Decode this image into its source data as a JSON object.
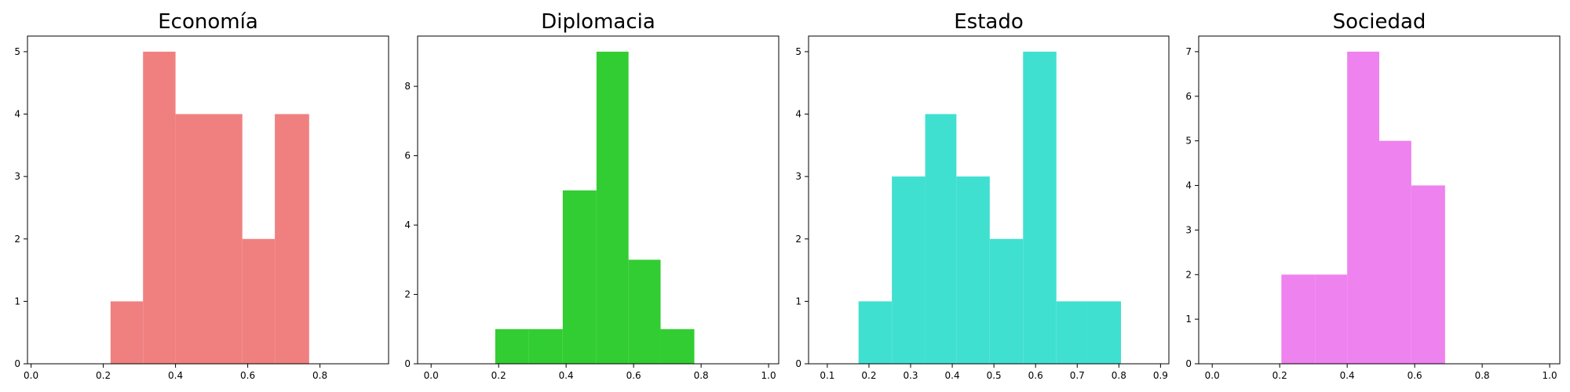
{
  "chart_data": [
    {
      "type": "bar",
      "title": "Economía",
      "color": "#f08080",
      "xlim": [
        -0.01,
        0.99
      ],
      "ylim": [
        0,
        5.25
      ],
      "xticks": [
        0.0,
        0.2,
        0.4,
        0.6,
        0.8
      ],
      "xtick_labels": [
        "0.0",
        "0.2",
        "0.4",
        "0.6",
        "0.8"
      ],
      "yticks": [
        0,
        1,
        2,
        3,
        4,
        5
      ],
      "ytick_labels": [
        "0",
        "1",
        "2",
        "3",
        "4",
        "5"
      ],
      "bins": [
        {
          "x0": 0.22,
          "x1": 0.31,
          "count": 1
        },
        {
          "x0": 0.31,
          "x1": 0.4,
          "count": 5
        },
        {
          "x0": 0.4,
          "x1": 0.49,
          "count": 4
        },
        {
          "x0": 0.49,
          "x1": 0.585,
          "count": 4
        },
        {
          "x0": 0.585,
          "x1": 0.675,
          "count": 2
        },
        {
          "x0": 0.675,
          "x1": 0.77,
          "count": 4
        }
      ]
    },
    {
      "type": "bar",
      "title": "Diplomacia",
      "color": "#32cd32",
      "xlim": [
        -0.04,
        1.03
      ],
      "ylim": [
        0,
        9.45
      ],
      "xticks": [
        0.0,
        0.2,
        0.4,
        0.6,
        0.8,
        1.0
      ],
      "xtick_labels": [
        "0.0",
        "0.2",
        "0.4",
        "0.6",
        "0.8",
        "1.0"
      ],
      "yticks": [
        0,
        2,
        4,
        6,
        8
      ],
      "ytick_labels": [
        "0",
        "2",
        "4",
        "6",
        "8"
      ],
      "bins": [
        {
          "x0": 0.19,
          "x1": 0.29,
          "count": 1
        },
        {
          "x0": 0.29,
          "x1": 0.39,
          "count": 1
        },
        {
          "x0": 0.39,
          "x1": 0.49,
          "count": 5
        },
        {
          "x0": 0.49,
          "x1": 0.585,
          "count": 9
        },
        {
          "x0": 0.585,
          "x1": 0.68,
          "count": 3
        },
        {
          "x0": 0.68,
          "x1": 0.78,
          "count": 1
        }
      ]
    },
    {
      "type": "bar",
      "title": "Estado",
      "color": "#40e0d0",
      "xlim": [
        0.055,
        0.92
      ],
      "ylim": [
        0,
        5.25
      ],
      "xticks": [
        0.1,
        0.2,
        0.3,
        0.4,
        0.5,
        0.6,
        0.7,
        0.8,
        0.9
      ],
      "xtick_labels": [
        "0.1",
        "0.2",
        "0.3",
        "0.4",
        "0.5",
        "0.6",
        "0.7",
        "0.8",
        "0.9"
      ],
      "yticks": [
        0,
        1,
        2,
        3,
        4,
        5
      ],
      "ytick_labels": [
        "0",
        "1",
        "2",
        "3",
        "4",
        "5"
      ],
      "bins": [
        {
          "x0": 0.175,
          "x1": 0.255,
          "count": 1
        },
        {
          "x0": 0.255,
          "x1": 0.335,
          "count": 3
        },
        {
          "x0": 0.335,
          "x1": 0.41,
          "count": 4
        },
        {
          "x0": 0.41,
          "x1": 0.49,
          "count": 3
        },
        {
          "x0": 0.49,
          "x1": 0.57,
          "count": 2
        },
        {
          "x0": 0.57,
          "x1": 0.65,
          "count": 5
        },
        {
          "x0": 0.65,
          "x1": 0.725,
          "count": 1
        },
        {
          "x0": 0.725,
          "x1": 0.805,
          "count": 1
        }
      ]
    },
    {
      "type": "bar",
      "title": "Sociedad",
      "color": "#ee82ee",
      "xlim": [
        -0.04,
        1.03
      ],
      "ylim": [
        0,
        7.35
      ],
      "xticks": [
        0.0,
        0.2,
        0.4,
        0.6,
        0.8,
        1.0
      ],
      "xtick_labels": [
        "0.0",
        "0.2",
        "0.4",
        "0.6",
        "0.8",
        "1.0"
      ],
      "yticks": [
        0,
        1,
        2,
        3,
        4,
        5,
        6,
        7
      ],
      "ytick_labels": [
        "0",
        "1",
        "2",
        "3",
        "4",
        "5",
        "6",
        "7"
      ],
      "bins": [
        {
          "x0": 0.205,
          "x1": 0.305,
          "count": 2
        },
        {
          "x0": 0.305,
          "x1": 0.4,
          "count": 2
        },
        {
          "x0": 0.4,
          "x1": 0.495,
          "count": 7
        },
        {
          "x0": 0.495,
          "x1": 0.59,
          "count": 5
        },
        {
          "x0": 0.59,
          "x1": 0.69,
          "count": 4
        }
      ]
    }
  ]
}
